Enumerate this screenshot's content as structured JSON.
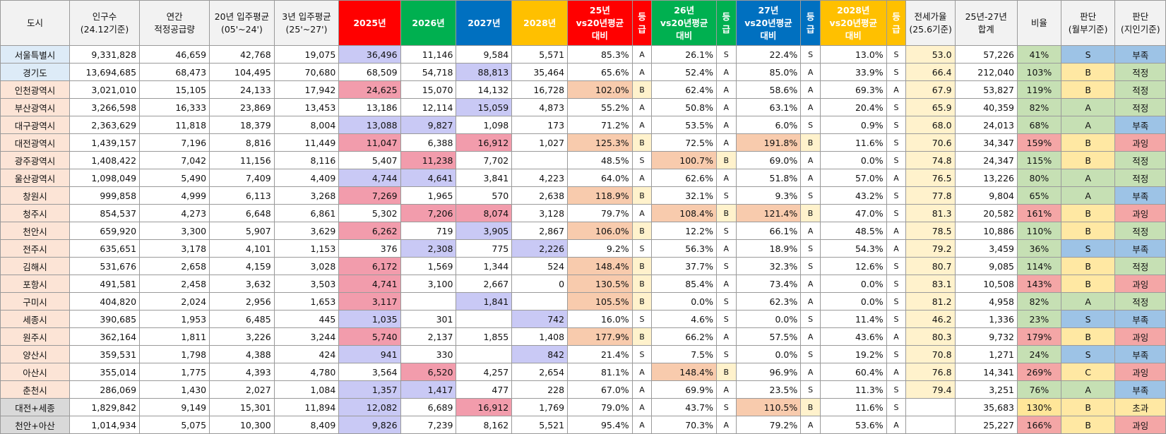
{
  "headers": [
    "도시",
    "인구수\n(24.12기준)",
    "연간\n적정공급량",
    "20년 입주평균\n(05'~24')",
    "3년 입주평균\n(25'~27')",
    "2025년",
    "2026년",
    "2027년",
    "2028년",
    "25년\nvs20년평균\n대비",
    "등\n급",
    "26년\nvs20년평균\n대비",
    "등\n급",
    "27년\nvs20년평균\n대비",
    "등\n급",
    "2028년\nvs20년평균\n대비",
    "등\n급",
    "전세가율\n(25.6기준)",
    "25년-27년\n합계",
    "비율",
    "판단\n(월부기준)",
    "판단\n(지인기준)"
  ],
  "rows": [
    [
      "서울특별시",
      "9,331,828",
      "46,659",
      "42,768",
      "19,075",
      "36,496",
      "11,146",
      "9,584",
      "5,571",
      "85.3%",
      "A",
      "26.1%",
      "S",
      "22.4%",
      "S",
      "13.0%",
      "S",
      "53.0",
      "57,226",
      "41%",
      "S",
      "부족"
    ],
    [
      "경기도",
      "13,694,685",
      "68,473",
      "104,495",
      "70,680",
      "68,509",
      "54,718",
      "88,813",
      "35,464",
      "65.6%",
      "A",
      "52.4%",
      "A",
      "85.0%",
      "A",
      "33.9%",
      "S",
      "66.4",
      "212,040",
      "103%",
      "B",
      "적정"
    ],
    [
      "인천광역시",
      "3,021,010",
      "15,105",
      "24,133",
      "17,942",
      "24,625",
      "15,070",
      "14,132",
      "16,728",
      "102.0%",
      "B",
      "62.4%",
      "A",
      "58.6%",
      "A",
      "69.3%",
      "A",
      "67.9",
      "53,827",
      "119%",
      "B",
      "적정"
    ],
    [
      "부산광역시",
      "3,266,598",
      "16,333",
      "23,869",
      "13,453",
      "13,186",
      "12,114",
      "15,059",
      "4,873",
      "55.2%",
      "A",
      "50.8%",
      "A",
      "63.1%",
      "A",
      "20.4%",
      "S",
      "65.9",
      "40,359",
      "82%",
      "A",
      "적정"
    ],
    [
      "대구광역시",
      "2,363,629",
      "11,818",
      "18,379",
      "8,004",
      "13,088",
      "9,827",
      "1,098",
      "173",
      "71.2%",
      "A",
      "53.5%",
      "A",
      "6.0%",
      "S",
      "0.9%",
      "S",
      "68.0",
      "24,013",
      "68%",
      "A",
      "부족"
    ],
    [
      "대전광역시",
      "1,439,157",
      "7,196",
      "8,816",
      "11,449",
      "11,047",
      "6,388",
      "16,912",
      "1,027",
      "125.3%",
      "B",
      "72.5%",
      "A",
      "191.8%",
      "B",
      "11.6%",
      "S",
      "70.6",
      "34,347",
      "159%",
      "B",
      "과잉"
    ],
    [
      "광주광역시",
      "1,408,422",
      "7,042",
      "11,156",
      "8,116",
      "5,407",
      "11,238",
      "7,702",
      "",
      "48.5%",
      "S",
      "100.7%",
      "B",
      "69.0%",
      "A",
      "0.0%",
      "S",
      "74.8",
      "24,347",
      "115%",
      "B",
      "적정"
    ],
    [
      "울산광역시",
      "1,098,049",
      "5,490",
      "7,409",
      "4,409",
      "4,744",
      "4,641",
      "3,841",
      "4,223",
      "64.0%",
      "A",
      "62.6%",
      "A",
      "51.8%",
      "A",
      "57.0%",
      "A",
      "76.5",
      "13,226",
      "80%",
      "A",
      "적정"
    ],
    [
      "창원시",
      "999,858",
      "4,999",
      "6,113",
      "3,268",
      "7,269",
      "1,965",
      "570",
      "2,638",
      "118.9%",
      "B",
      "32.1%",
      "S",
      "9.3%",
      "S",
      "43.2%",
      "S",
      "77.8",
      "9,804",
      "65%",
      "A",
      "부족"
    ],
    [
      "청주시",
      "854,537",
      "4,273",
      "6,648",
      "6,861",
      "5,302",
      "7,206",
      "8,074",
      "3,128",
      "79.7%",
      "A",
      "108.4%",
      "B",
      "121.4%",
      "B",
      "47.0%",
      "S",
      "81.3",
      "20,582",
      "161%",
      "B",
      "과잉"
    ],
    [
      "천안시",
      "659,920",
      "3,300",
      "5,907",
      "3,629",
      "6,262",
      "719",
      "3,905",
      "2,867",
      "106.0%",
      "B",
      "12.2%",
      "S",
      "66.1%",
      "A",
      "48.5%",
      "A",
      "78.5",
      "10,886",
      "110%",
      "B",
      "적정"
    ],
    [
      "전주시",
      "635,651",
      "3,178",
      "4,101",
      "1,153",
      "376",
      "2,308",
      "775",
      "2,226",
      "9.2%",
      "S",
      "56.3%",
      "A",
      "18.9%",
      "S",
      "54.3%",
      "A",
      "79.2",
      "3,459",
      "36%",
      "S",
      "부족"
    ],
    [
      "김해시",
      "531,676",
      "2,658",
      "4,159",
      "3,028",
      "6,172",
      "1,569",
      "1,344",
      "524",
      "148.4%",
      "B",
      "37.7%",
      "S",
      "32.3%",
      "S",
      "12.6%",
      "S",
      "80.7",
      "9,085",
      "114%",
      "B",
      "적정"
    ],
    [
      "포항시",
      "491,581",
      "2,458",
      "3,632",
      "3,503",
      "4,741",
      "3,100",
      "2,667",
      "0",
      "130.5%",
      "B",
      "85.4%",
      "A",
      "73.4%",
      "A",
      "0.0%",
      "S",
      "83.1",
      "10,508",
      "143%",
      "B",
      "과잉"
    ],
    [
      "구미시",
      "404,820",
      "2,024",
      "2,956",
      "1,653",
      "3,117",
      "",
      "1,841",
      "",
      "105.5%",
      "B",
      "0.0%",
      "S",
      "62.3%",
      "A",
      "0.0%",
      "S",
      "81.2",
      "4,958",
      "82%",
      "A",
      "적정"
    ],
    [
      "세종시",
      "390,685",
      "1,953",
      "6,485",
      "445",
      "1,035",
      "301",
      "",
      "742",
      "16.0%",
      "S",
      "4.6%",
      "S",
      "0.0%",
      "S",
      "11.4%",
      "S",
      "46.2",
      "1,336",
      "23%",
      "S",
      "부족"
    ],
    [
      "원주시",
      "362,164",
      "1,811",
      "3,226",
      "3,244",
      "5,740",
      "2,137",
      "1,855",
      "1,408",
      "177.9%",
      "B",
      "66.2%",
      "A",
      "57.5%",
      "A",
      "43.6%",
      "A",
      "80.3",
      "9,732",
      "179%",
      "B",
      "과잉"
    ],
    [
      "양산시",
      "359,531",
      "1,798",
      "4,388",
      "424",
      "941",
      "330",
      "",
      "842",
      "21.4%",
      "S",
      "7.5%",
      "S",
      "0.0%",
      "S",
      "19.2%",
      "S",
      "70.8",
      "1,271",
      "24%",
      "S",
      "부족"
    ],
    [
      "아산시",
      "355,014",
      "1,775",
      "4,393",
      "4,780",
      "3,564",
      "6,520",
      "4,257",
      "2,654",
      "81.1%",
      "A",
      "148.4%",
      "B",
      "96.9%",
      "A",
      "60.4%",
      "A",
      "76.8",
      "14,341",
      "269%",
      "C",
      "과잉"
    ],
    [
      "춘천시",
      "286,069",
      "1,430",
      "2,027",
      "1,084",
      "1,357",
      "1,417",
      "477",
      "228",
      "67.0%",
      "A",
      "69.9%",
      "A",
      "23.5%",
      "S",
      "11.3%",
      "S",
      "79.4",
      "3,251",
      "76%",
      "A",
      "부족"
    ],
    [
      "대전+세종",
      "1,829,842",
      "9,149",
      "15,301",
      "11,894",
      "12,082",
      "6,689",
      "16,912",
      "1,769",
      "79.0%",
      "A",
      "43.7%",
      "S",
      "110.5%",
      "B",
      "11.6%",
      "S",
      "",
      "35,683",
      "130%",
      "B",
      "초과"
    ],
    [
      "천안+아산",
      "1,014,934",
      "5,075",
      "10,300",
      "8,409",
      "9,826",
      "7,239",
      "8,162",
      "5,521",
      "95.4%",
      "A",
      "70.3%",
      "A",
      "79.2%",
      "A",
      "53.6%",
      "A",
      "",
      "25,227",
      "166%",
      "B",
      "과잉"
    ]
  ],
  "highlights": {
    "city_colors": [
      "rowblue",
      "rowblue",
      "rowpink",
      "rowpink",
      "rowpink",
      "rowpink",
      "rowpink",
      "rowpink",
      "rowpink",
      "rowpink",
      "rowpink",
      "rowpink",
      "rowpink",
      "rowpink",
      "rowpink",
      "rowpink",
      "rowpink",
      "rowpink",
      "rowpink",
      "rowpink",
      "rowgrey",
      "rowgrey"
    ],
    "y2025": [
      "blue",
      "",
      "red",
      "",
      "blue",
      "red",
      "",
      "blue",
      "red",
      "",
      "red",
      "",
      "red",
      "red",
      "red",
      "blue",
      "red",
      "blue",
      "",
      "blue",
      "blue",
      "blue"
    ],
    "y2026": [
      "",
      "",
      "",
      "",
      "blue",
      "",
      "red",
      "blue",
      "",
      "red",
      "",
      "blue",
      "",
      "",
      "",
      "",
      "",
      "",
      "red",
      "blue",
      "",
      ""
    ],
    "y2027": [
      "",
      "blue",
      "",
      "blue",
      "",
      "red",
      "",
      "",
      "",
      "red",
      "blue",
      "",
      "",
      "",
      "blue",
      "",
      "",
      "",
      "",
      "",
      "red",
      ""
    ],
    "y2028": [
      "",
      "",
      "",
      "",
      "",
      "",
      "",
      "",
      "",
      "",
      "",
      "blue",
      "",
      "",
      "",
      "blue",
      "",
      "blue",
      "",
      "",
      "",
      ""
    ],
    "p25": [
      "",
      "",
      "peach",
      "",
      "",
      "peach",
      "",
      "",
      "peach",
      "",
      "peach",
      "",
      "peach",
      "peach",
      "peach",
      "",
      "peach",
      "",
      "",
      "",
      "",
      ""
    ],
    "p26": [
      "",
      "",
      "",
      "",
      "",
      "",
      "peach",
      "",
      "",
      "peach",
      "",
      "",
      "",
      "",
      "",
      "",
      "",
      "",
      "peach",
      "",
      "",
      ""
    ],
    "p27": [
      "",
      "",
      "",
      "",
      "",
      "peach",
      "",
      "",
      "",
      "peach",
      "",
      "",
      "",
      "",
      "",
      "",
      "",
      "",
      "",
      "",
      "peach",
      ""
    ],
    "jeonse": [
      "cream",
      "cream",
      "cream",
      "cream",
      "cream",
      "cream",
      "cream",
      "cream",
      "cream",
      "cream",
      "cream",
      "cream",
      "cream",
      "cream",
      "cream",
      "cream",
      "cream",
      "cream",
      "cream",
      "cream",
      "",
      ""
    ],
    "ratio": [
      "green",
      "green",
      "green",
      "green",
      "green",
      "pred",
      "green",
      "green",
      "green",
      "pred",
      "green",
      "green",
      "green",
      "pred",
      "green",
      "green",
      "pred",
      "green",
      "pred",
      "green",
      "ratio-b",
      "pred"
    ],
    "judge1": [
      "sky",
      "yellow",
      "yellow",
      "green",
      "green",
      "yellow",
      "yellow",
      "green",
      "green",
      "yellow",
      "yellow",
      "sky",
      "yellow",
      "yellow",
      "green",
      "sky",
      "yellow",
      "sky",
      "yellow",
      "green",
      "yellow",
      "yellow"
    ],
    "judge2": [
      "sky",
      "green",
      "green",
      "green",
      "sky",
      "pred",
      "green",
      "green",
      "sky",
      "pred",
      "green",
      "sky",
      "green",
      "pred",
      "green",
      "sky",
      "pred",
      "sky",
      "pred",
      "sky",
      "yellow",
      "pred"
    ]
  },
  "colors": {
    "red_header": "#ff0000",
    "green_header": "#00b050",
    "blue_header": "#0070c0",
    "gold_header": "#ffc000"
  }
}
